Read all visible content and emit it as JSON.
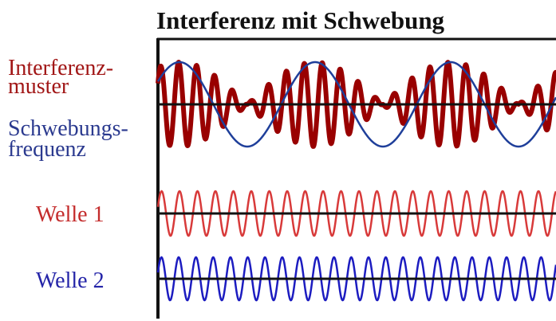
{
  "title": "Interferenz mit Schwebung",
  "labels": {
    "interference_line1": "Interferenz-",
    "interference_line2": "muster",
    "beat_line1": "Schwebungs-",
    "beat_line2": "frequenz",
    "wave1": "Welle 1",
    "wave2": "Welle 2"
  },
  "colors": {
    "interference": "#990000",
    "envelope": "#1f3f9a",
    "wave1": "#d83a3a",
    "wave2": "#1c1cc0",
    "axis": "#111111"
  }
}
